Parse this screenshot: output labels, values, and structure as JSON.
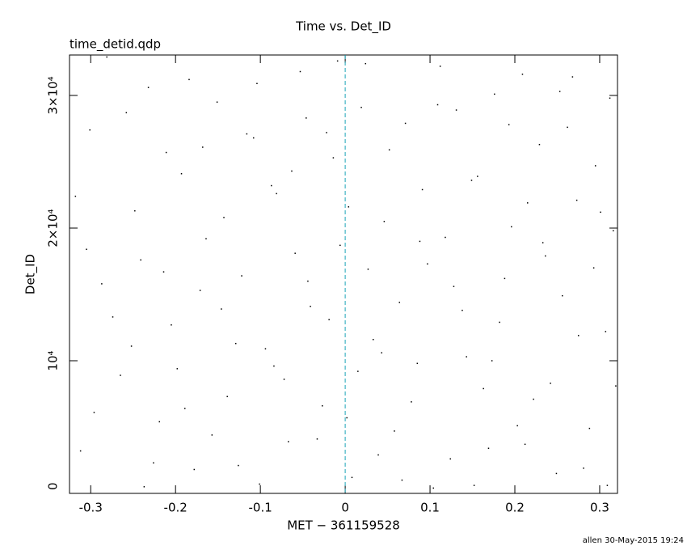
{
  "chart_data": {
    "type": "scatter",
    "title": "Time vs. Det_ID",
    "subtitle": "time_detid.qdp",
    "x_label": "MET − 361159528",
    "y_label": "Det_ID",
    "footer": "allen 30-May-2015 19:24",
    "color": "#000000",
    "reference_line": {
      "x": 0,
      "color": "#1aa3b8"
    },
    "xlim": [
      -0.325,
      0.321
    ],
    "ylim": [
      0,
      33050
    ],
    "xticks": [
      -0.3,
      -0.2,
      -0.1,
      0,
      0.1,
      0.2,
      0.3
    ],
    "yticks": [
      0,
      {
        "value": 10000,
        "label": "10⁴"
      },
      {
        "value": 20000,
        "label": "2×10⁴"
      },
      {
        "value": 30000,
        "label": "3×10⁴"
      }
    ],
    "x": [
      -0.312,
      -0.287,
      -0.301,
      -0.265,
      -0.248,
      -0.232,
      -0.219,
      -0.205,
      -0.193,
      -0.178,
      -0.164,
      -0.151,
      -0.139,
      -0.122,
      -0.108,
      -0.094,
      -0.081,
      -0.067,
      -0.053,
      -0.041,
      -0.027,
      -0.014,
      -0.006,
      0.008,
      0.019,
      0.033,
      0.046,
      0.058,
      0.071,
      0.085,
      0.097,
      0.112,
      0.124,
      0.138,
      0.149,
      0.163,
      0.176,
      0.188,
      0.203,
      0.215,
      0.229,
      0.242,
      0.256,
      0.268,
      0.281,
      0.295,
      0.307,
      0.316,
      -0.318,
      -0.296,
      -0.274,
      -0.258,
      -0.241,
      -0.226,
      -0.211,
      -0.198,
      -0.184,
      -0.171,
      -0.157,
      -0.143,
      -0.129,
      -0.116,
      -0.101,
      -0.087,
      -0.072,
      -0.059,
      -0.046,
      -0.033,
      -0.019,
      -0.009,
      0.004,
      0.015,
      0.027,
      0.039,
      0.052,
      0.064,
      0.078,
      0.091,
      0.104,
      0.118,
      0.131,
      0.143,
      0.156,
      0.169,
      0.182,
      0.196,
      0.209,
      0.222,
      0.236,
      0.249,
      0.262,
      0.275,
      0.288,
      0.301,
      0.312,
      0.319,
      -0.305,
      -0.281,
      -0.252,
      -0.237,
      -0.214,
      -0.189,
      -0.168,
      -0.146,
      -0.126,
      -0.104,
      -0.084,
      -0.063,
      -0.044,
      -0.022,
      0.002,
      0.024,
      0.043,
      0.067,
      0.088,
      0.109,
      0.128,
      0.152,
      0.173,
      0.193,
      0.212,
      0.233,
      0.253,
      0.273,
      0.293,
      0.309
    ],
    "values": [
      3200,
      15800,
      27400,
      8900,
      21300,
      30600,
      5400,
      12700,
      24100,
      1800,
      19200,
      29500,
      7300,
      16400,
      26800,
      10900,
      22600,
      3900,
      31800,
      14100,
      6600,
      25300,
      18700,
      1200,
      29100,
      11600,
      20500,
      4700,
      27900,
      9800,
      17300,
      32200,
      2600,
      13800,
      23600,
      7900,
      30100,
      16200,
      5100,
      21900,
      26300,
      8300,
      14900,
      31400,
      1900,
      24700,
      12200,
      19800,
      22400,
      6100,
      13300,
      28700,
      17600,
      2300,
      25700,
      9400,
      31200,
      15300,
      4400,
      20800,
      11300,
      27100,
      700,
      23200,
      8600,
      18100,
      28300,
      4100,
      13100,
      32600,
      21600,
      9200,
      16900,
      2900,
      25900,
      14400,
      6900,
      22900,
      400,
      19300,
      28900,
      10300,
      23900,
      3400,
      12900,
      20100,
      31600,
      7100,
      17900,
      1500,
      27600,
      11900,
      4900,
      21200,
      29800,
      8100,
      18400,
      32900,
      11100,
      500,
      16700,
      6400,
      26100,
      13900,
      2100,
      30900,
      9600,
      24300,
      16000,
      27200,
      5700,
      32400,
      10600,
      1000,
      19000,
      29300,
      15600,
      600,
      10000,
      27800,
      3700,
      18900,
      30300,
      22100,
      17000,
      600
    ]
  }
}
